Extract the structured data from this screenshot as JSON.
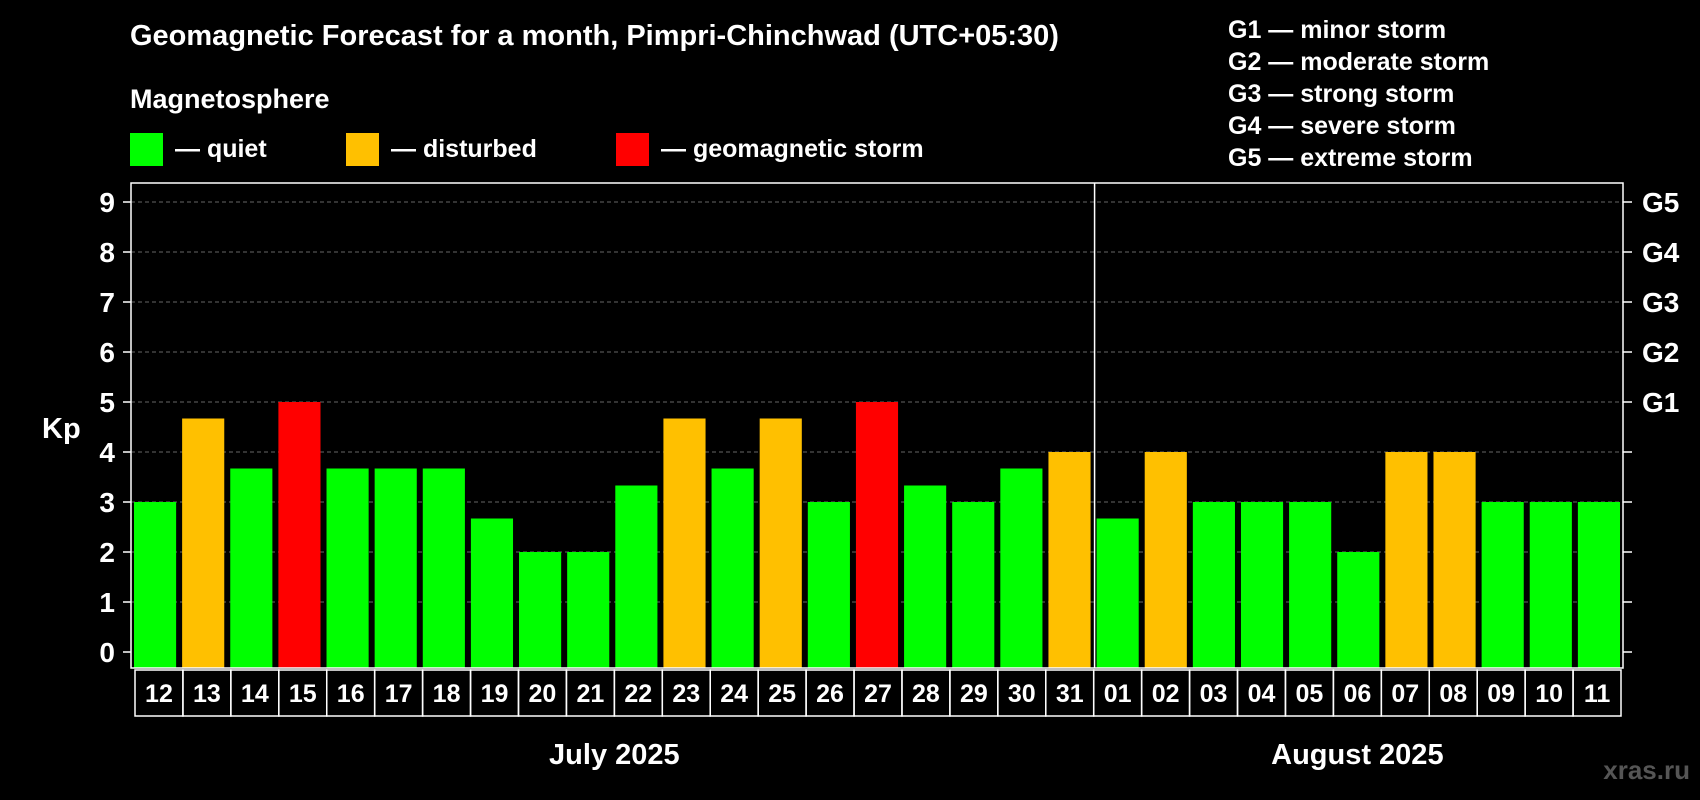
{
  "header": {
    "title": "Geomagnetic Forecast for a month, Pimpri-Chinchwad (UTC+05:30)",
    "subtitle": "Magnetosphere"
  },
  "legend": [
    {
      "label": "— quiet",
      "color": "#00ff00"
    },
    {
      "label": "— disturbed",
      "color": "#ffc000"
    },
    {
      "label": "— geomagnetic storm",
      "color": "#ff0000"
    }
  ],
  "storm_levels": [
    "G1 — minor storm",
    "G2 — moderate storm",
    "G3 — strong storm",
    "G4 — severe storm",
    "G5 — extreme storm"
  ],
  "watermark": "xras.ru",
  "chart_data": {
    "type": "bar",
    "ylabel": "Kp",
    "ylim": [
      0,
      9
    ],
    "yticks": [
      "0",
      "1",
      "2",
      "3",
      "4",
      "5",
      "6",
      "7",
      "8",
      "9"
    ],
    "right_ticks": [
      {
        "value": 5,
        "label": "G1"
      },
      {
        "value": 6,
        "label": "G2"
      },
      {
        "value": 7,
        "label": "G3"
      },
      {
        "value": 8,
        "label": "G4"
      },
      {
        "value": 9,
        "label": "G5"
      }
    ],
    "categories": [
      "12",
      "13",
      "14",
      "15",
      "16",
      "17",
      "18",
      "19",
      "20",
      "21",
      "22",
      "23",
      "24",
      "25",
      "26",
      "27",
      "28",
      "29",
      "30",
      "31",
      "01",
      "02",
      "03",
      "04",
      "05",
      "06",
      "07",
      "08",
      "09",
      "10",
      "11"
    ],
    "values": [
      3,
      4.67,
      3.67,
      5,
      3.67,
      3.67,
      3.67,
      2.67,
      2,
      2,
      3.33,
      4.67,
      3.67,
      4.67,
      3,
      5,
      3.33,
      3,
      3.67,
      4,
      2.67,
      4,
      3,
      3,
      3,
      2,
      4,
      4,
      3,
      3,
      3
    ],
    "levels": [
      "quiet",
      "disturbed",
      "quiet",
      "storm",
      "quiet",
      "quiet",
      "quiet",
      "quiet",
      "quiet",
      "quiet",
      "quiet",
      "disturbed",
      "quiet",
      "disturbed",
      "quiet",
      "storm",
      "quiet",
      "quiet",
      "quiet",
      "disturbed",
      "quiet",
      "disturbed",
      "quiet",
      "quiet",
      "quiet",
      "quiet",
      "disturbed",
      "disturbed",
      "quiet",
      "quiet",
      "quiet"
    ],
    "months": [
      {
        "label": "July 2025",
        "count": 20
      },
      {
        "label": "August 2025",
        "count": 11
      }
    ],
    "colors": {
      "quiet": "#00ff00",
      "disturbed": "#ffc000",
      "storm": "#ff0000"
    },
    "grid": true
  }
}
